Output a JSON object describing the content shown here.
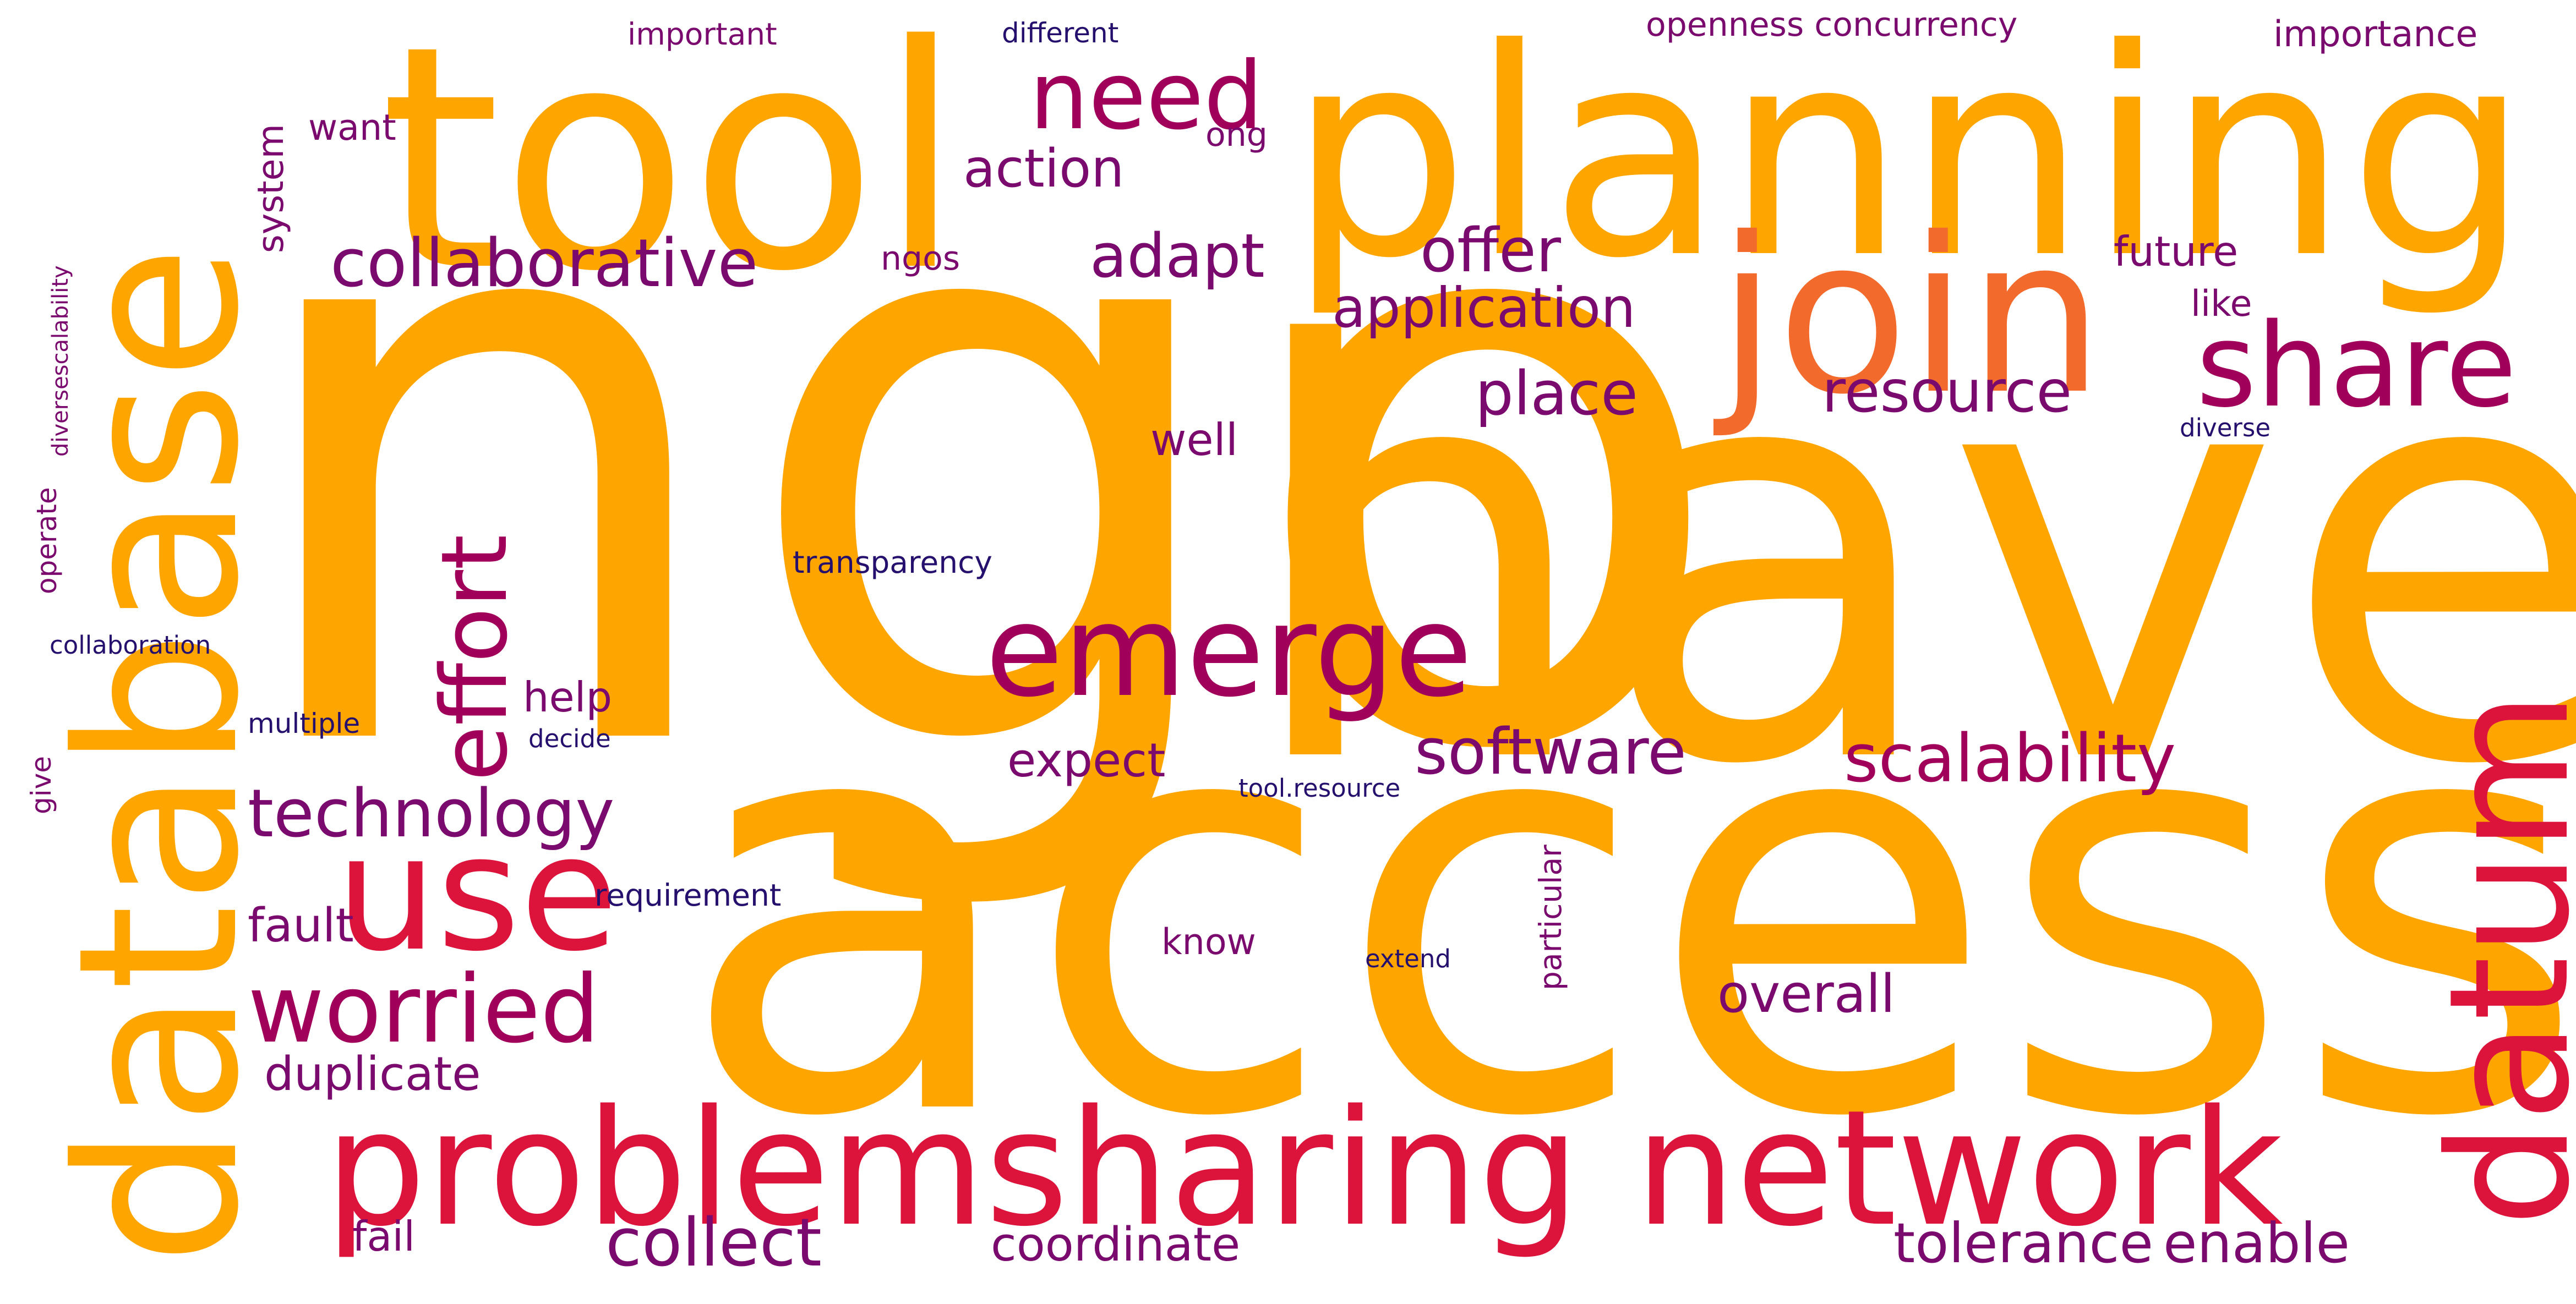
{
  "palette": {
    "orange": "#ffa500",
    "dark_orange": "#f36b2c",
    "crimson": "#dc143c",
    "magenta": "#a0005a",
    "purple": "#7a0a6e",
    "navy": "#25106e"
  },
  "words": [
    "ngo",
    "have",
    "access",
    "planning",
    "tool",
    "database",
    "join",
    "problemsharing",
    "network",
    "datum",
    "emerge",
    "use",
    "share",
    "need",
    "worried",
    "effort",
    "collaborative",
    "technology",
    "collect",
    "scalability",
    "software",
    "resource",
    "application",
    "place",
    "tolerance",
    "offer",
    "adapt",
    "action",
    "duplicate",
    "coordinate",
    "enable",
    "overall",
    "fault",
    "future",
    "expect",
    "fail",
    "help",
    "well",
    "know",
    "importance",
    "openness concurrency",
    "system",
    "want",
    "like",
    "ngos",
    "ong",
    "transparency",
    "requirement",
    "particular",
    "multiple",
    "operate",
    "different",
    "important",
    "tool.resource",
    "extend",
    "give",
    "decide",
    "collaboration",
    "diversescalability",
    "diverse"
  ]
}
